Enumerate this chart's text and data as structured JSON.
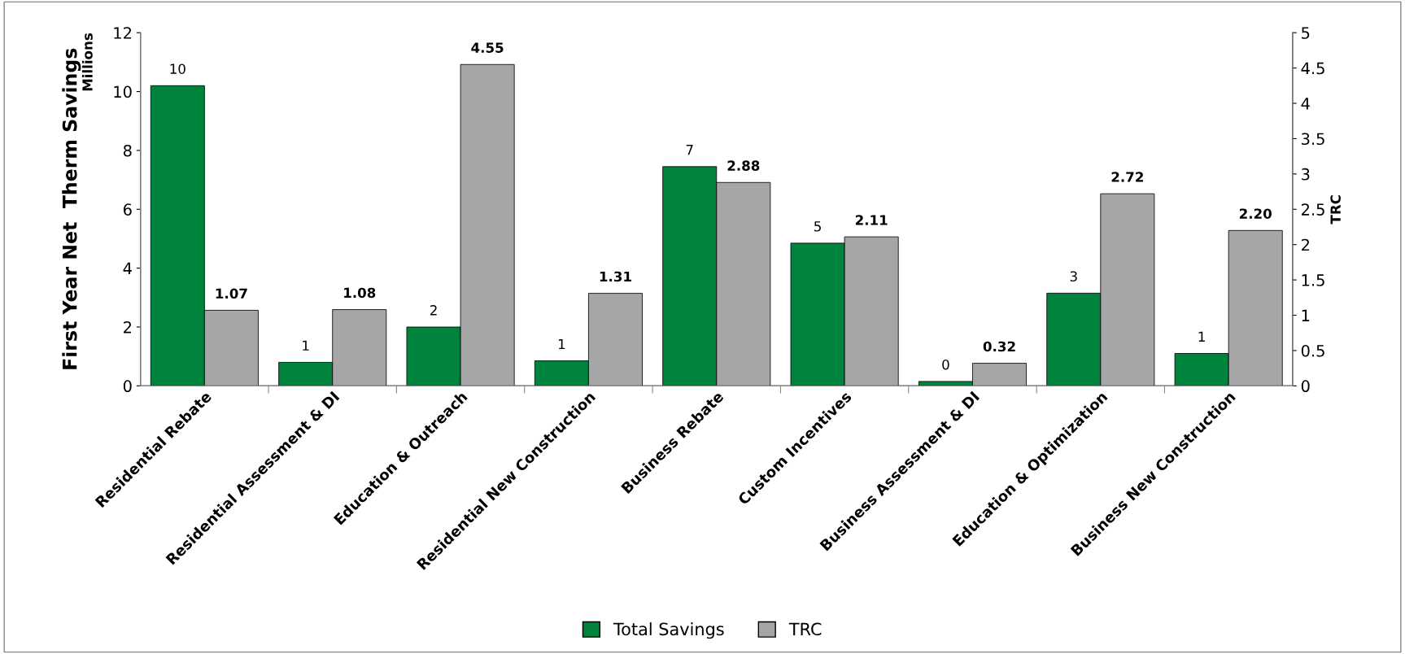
{
  "chart_data": {
    "type": "bar",
    "categories": [
      "Residential Rebate",
      "Residential Assessment & DI",
      "Education & Outreach",
      "Residential New Construction",
      "Business Rebate",
      "Custom Incentives",
      "Business Assessment & DI",
      "Education & Optimization",
      "Business New Construction"
    ],
    "series": [
      {
        "name": "Total Savings",
        "color": "#00843d",
        "values": [
          10.2,
          0.8,
          2.0,
          0.85,
          7.45,
          4.85,
          0.15,
          3.15,
          1.1
        ],
        "value_labels": [
          "10",
          "1",
          "2",
          "1",
          "7",
          "5",
          "0",
          "3",
          "1"
        ]
      },
      {
        "name": "TRC",
        "color": "#a6a6a6",
        "axis": "y2",
        "values": [
          1.07,
          1.08,
          4.55,
          1.31,
          2.88,
          2.11,
          0.32,
          2.72,
          2.2
        ],
        "value_labels": [
          "1.07",
          "1.08",
          "4.55",
          "1.31",
          "2.88",
          "2.11",
          "0.32",
          "2.72",
          "2.20"
        ]
      }
    ],
    "ylabel": "First Year Net  Therm Savings",
    "y2label": "TRC",
    "annotations": [
      "Millions"
    ],
    "ylim": [
      0,
      12
    ],
    "yticks": [
      0,
      2,
      4,
      6,
      8,
      10,
      12
    ],
    "y2lim": [
      0,
      5
    ],
    "y2ticks": [
      0,
      0.5,
      1,
      1.5,
      2,
      2.5,
      3,
      3.5,
      4,
      4.5,
      5
    ],
    "legend": "bottom",
    "grid": false
  }
}
